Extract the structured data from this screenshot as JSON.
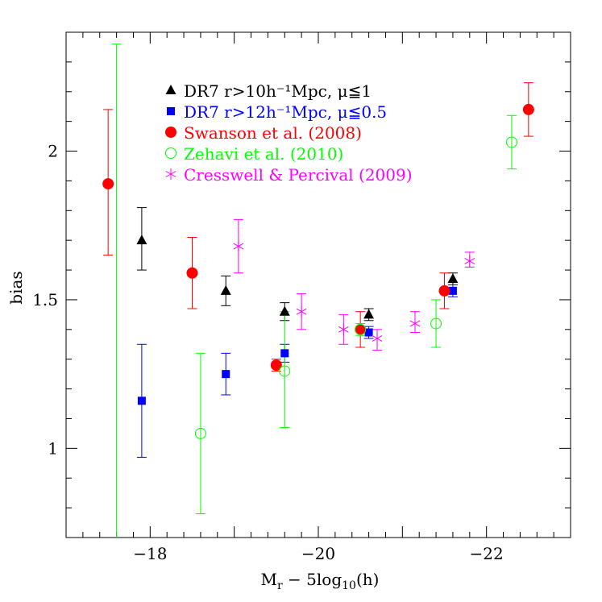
{
  "chart_data": {
    "type": "scatter",
    "title": "",
    "xlabel": "M",
    "xlabel_sub": "r",
    "xlabel_rest": " − 5log",
    "xlabel_sub2": "10",
    "xlabel_end": "(h)",
    "ylabel": "bias",
    "xlim": [
      -17.0,
      -23.0
    ],
    "ylim": [
      0.7,
      2.4
    ],
    "x_ticks": [
      -18,
      -20,
      -22
    ],
    "x_tick_labels": [
      "−18",
      "−20",
      "−22"
    ],
    "y_ticks": [
      1,
      1.5,
      2
    ],
    "y_tick_labels": [
      "1",
      "1.5",
      "2"
    ],
    "grid": false,
    "legend_position": "top-left",
    "series": [
      {
        "name": "DR7 r>10h⁻¹Mpc, μ≦1",
        "marker": "triangle",
        "color": "#000000",
        "points": [
          {
            "x": -17.9,
            "y": 1.7,
            "lo": 1.6,
            "hi": 1.81
          },
          {
            "x": -18.9,
            "y": 1.53,
            "lo": 1.48,
            "hi": 1.58
          },
          {
            "x": -19.6,
            "y": 1.46,
            "lo": 1.43,
            "hi": 1.49
          },
          {
            "x": -20.6,
            "y": 1.45,
            "lo": 1.43,
            "hi": 1.47
          },
          {
            "x": -21.6,
            "y": 1.57,
            "lo": 1.55,
            "hi": 1.59
          }
        ]
      },
      {
        "name": "DR7 r>12h⁻¹Mpc, μ≦0.5",
        "marker": "square",
        "color": "#0000ff",
        "points": [
          {
            "x": -17.9,
            "y": 1.16,
            "lo": 0.97,
            "hi": 1.35
          },
          {
            "x": -18.9,
            "y": 1.25,
            "lo": 1.18,
            "hi": 1.32
          },
          {
            "x": -19.6,
            "y": 1.32,
            "lo": 1.29,
            "hi": 1.35
          },
          {
            "x": -20.6,
            "y": 1.39,
            "lo": 1.37,
            "hi": 1.41
          },
          {
            "x": -21.6,
            "y": 1.53,
            "lo": 1.51,
            "hi": 1.55
          }
        ]
      },
      {
        "name": "Swanson et al. (2008)",
        "marker": "filled-circle",
        "color": "#ff0000",
        "points": [
          {
            "x": -17.5,
            "y": 1.89,
            "lo": 1.65,
            "hi": 2.14
          },
          {
            "x": -18.5,
            "y": 1.59,
            "lo": 1.47,
            "hi": 1.71
          },
          {
            "x": -19.5,
            "y": 1.28,
            "lo": 1.26,
            "hi": 1.3
          },
          {
            "x": -20.5,
            "y": 1.4,
            "lo": 1.34,
            "hi": 1.46
          },
          {
            "x": -21.5,
            "y": 1.53,
            "lo": 1.47,
            "hi": 1.59
          },
          {
            "x": -22.5,
            "y": 2.14,
            "lo": 2.05,
            "hi": 2.23
          }
        ]
      },
      {
        "name": "Zehavi et al. (2010)",
        "marker": "open-circle",
        "color": "#00ff00",
        "points": [
          {
            "x": -17.6,
            "y": 0.7,
            "lo": 0.7,
            "hi": 2.36
          },
          {
            "x": -18.6,
            "y": 1.05,
            "lo": 0.78,
            "hi": 1.32
          },
          {
            "x": -19.6,
            "y": 1.26,
            "lo": 1.07,
            "hi": 1.46
          },
          {
            "x": -20.5,
            "y": 1.4,
            "lo": 1.38,
            "hi": 1.42
          },
          {
            "x": -21.4,
            "y": 1.42,
            "lo": 1.34,
            "hi": 1.5
          },
          {
            "x": -22.3,
            "y": 2.03,
            "lo": 1.94,
            "hi": 2.12
          }
        ]
      },
      {
        "name": "Cresswell & Percival (2009)",
        "marker": "asterisk",
        "color": "#ff00ff",
        "points": [
          {
            "x": -19.05,
            "y": 1.68,
            "lo": 1.59,
            "hi": 1.77
          },
          {
            "x": -19.8,
            "y": 1.46,
            "lo": 1.4,
            "hi": 1.52
          },
          {
            "x": -20.3,
            "y": 1.4,
            "lo": 1.35,
            "hi": 1.45
          },
          {
            "x": -20.7,
            "y": 1.37,
            "lo": 1.33,
            "hi": 1.4
          },
          {
            "x": -21.15,
            "y": 1.42,
            "lo": 1.39,
            "hi": 1.46
          },
          {
            "x": -21.8,
            "y": 1.63,
            "lo": 1.61,
            "hi": 1.66
          }
        ]
      }
    ]
  }
}
